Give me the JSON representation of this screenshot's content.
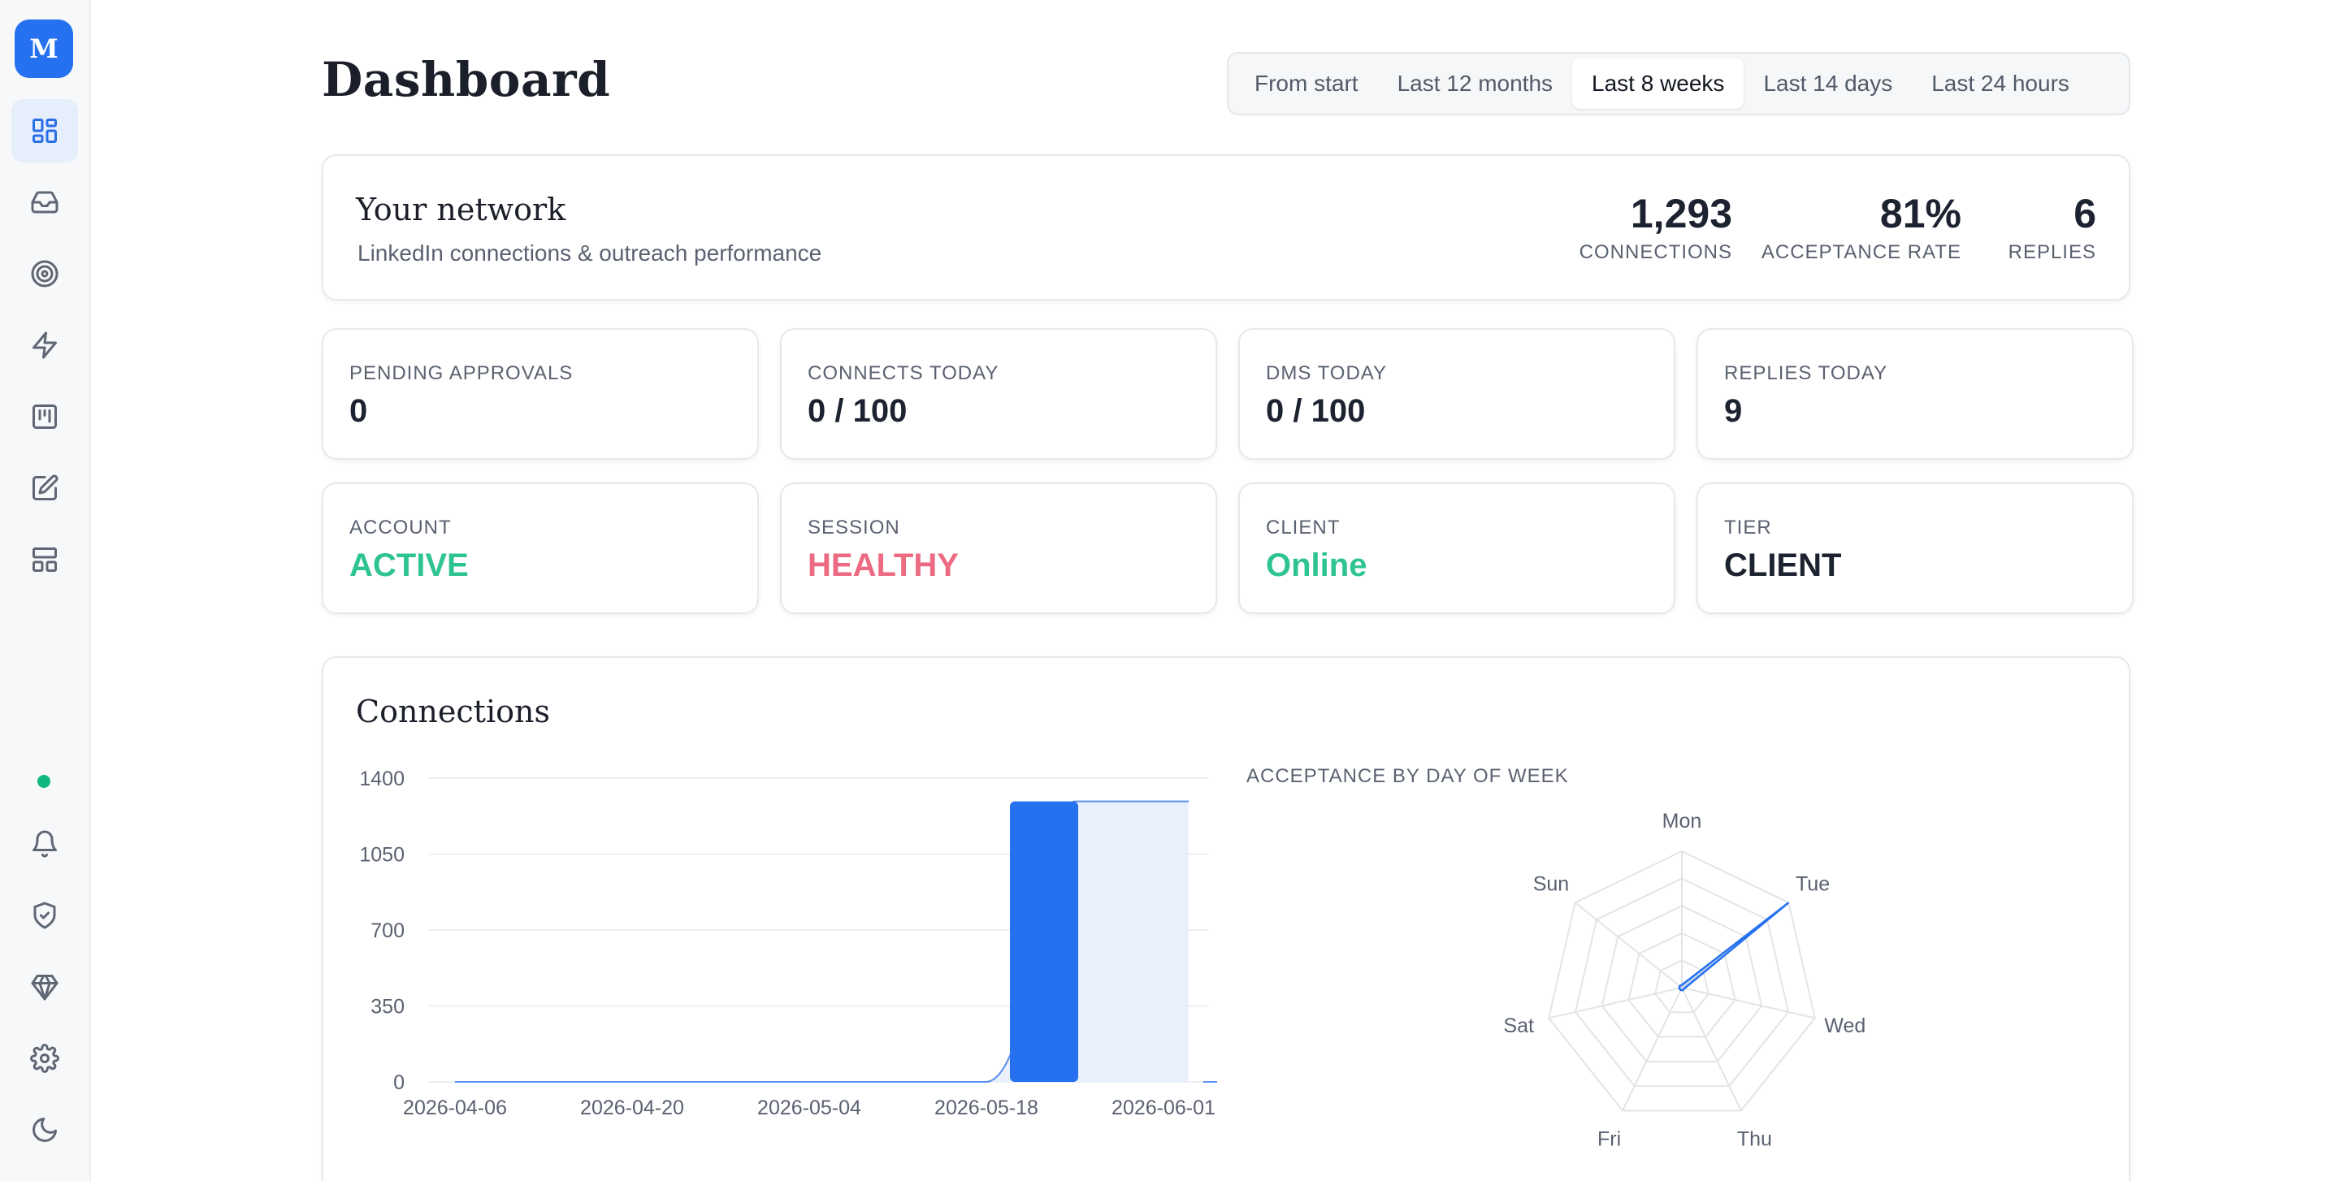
{
  "sidebar": {
    "logo": "M",
    "nav_items": [
      {
        "name": "dashboard",
        "icon": "grid-icon",
        "active": true
      },
      {
        "name": "inbox",
        "icon": "inbox-icon"
      },
      {
        "name": "campaigns",
        "icon": "target-icon"
      },
      {
        "name": "automations",
        "icon": "lightning-icon"
      },
      {
        "name": "board",
        "icon": "kanban-icon"
      },
      {
        "name": "compose",
        "icon": "edit-icon"
      },
      {
        "name": "templates",
        "icon": "layout-icon"
      }
    ],
    "status_color": "#10b981",
    "bottom_items": [
      {
        "name": "notifications",
        "icon": "bell-icon"
      },
      {
        "name": "security",
        "icon": "shield-check-icon"
      },
      {
        "name": "plans",
        "icon": "diamond-icon"
      },
      {
        "name": "settings",
        "icon": "gear-icon"
      },
      {
        "name": "theme",
        "icon": "moon-icon"
      }
    ]
  },
  "header": {
    "title": "Dashboard",
    "ranges": [
      "From start",
      "Last 12 months",
      "Last 8 weeks",
      "Last 14 days",
      "Last 24 hours"
    ],
    "active_range": "Last 8 weeks"
  },
  "network": {
    "title": "Your network",
    "subtitle": "LinkedIn connections & outreach performance",
    "stats": [
      {
        "value": "1,293",
        "label": "CONNECTIONS"
      },
      {
        "value": "81%",
        "label": "ACCEPTANCE RATE"
      },
      {
        "value": "6",
        "label": "REPLIES"
      }
    ]
  },
  "metrics": [
    {
      "label": "PENDING APPROVALS",
      "value": "0"
    },
    {
      "label": "CONNECTS TODAY",
      "value": "0 / 100"
    },
    {
      "label": "DMS TODAY",
      "value": "0 / 100"
    },
    {
      "label": "REPLIES TODAY",
      "value": "9"
    }
  ],
  "status_cards": [
    {
      "label": "ACCOUNT",
      "value": "ACTIVE",
      "tone": "green"
    },
    {
      "label": "SESSION",
      "value": "HEALTHY",
      "tone": "red"
    },
    {
      "label": "CLIENT",
      "value": "Online",
      "tone": "green"
    },
    {
      "label": "TIER",
      "value": "CLIENT",
      "tone": "dark"
    }
  ],
  "colors": {
    "accent": "#2571f0",
    "green": "#2ec48f",
    "red": "#ec6b82",
    "area_fill": "#e8effc"
  },
  "connections_title": "Connections",
  "radar_title": "ACCEPTANCE BY DAY OF WEEK",
  "chart_data": [
    {
      "type": "bar",
      "title": "Connections",
      "x_labels": [
        "2026-04-06",
        "2026-04-20",
        "2026-05-04",
        "2026-05-18",
        "2026-06-01"
      ],
      "y_ticks": [
        0,
        350,
        700,
        1050,
        1400
      ],
      "ylim": [
        0,
        1400
      ],
      "grid": true,
      "bars": [
        {
          "x": "2026-05-25",
          "value": 1293
        }
      ],
      "cumulative_line": [
        {
          "x": "2026-04-06",
          "value": 0
        },
        {
          "x": "2026-05-18",
          "value": 0
        },
        {
          "x": "2026-05-25",
          "value": 1293
        },
        {
          "x": "2026-06-01",
          "value": 1293
        }
      ]
    },
    {
      "type": "radar",
      "title": "ACCEPTANCE BY DAY OF WEEK",
      "axes": [
        "Mon",
        "Tue",
        "Wed",
        "Thu",
        "Fri",
        "Sat",
        "Sun"
      ],
      "values": [
        0,
        1,
        0,
        0,
        0,
        0,
        0
      ],
      "rings": 5
    }
  ]
}
